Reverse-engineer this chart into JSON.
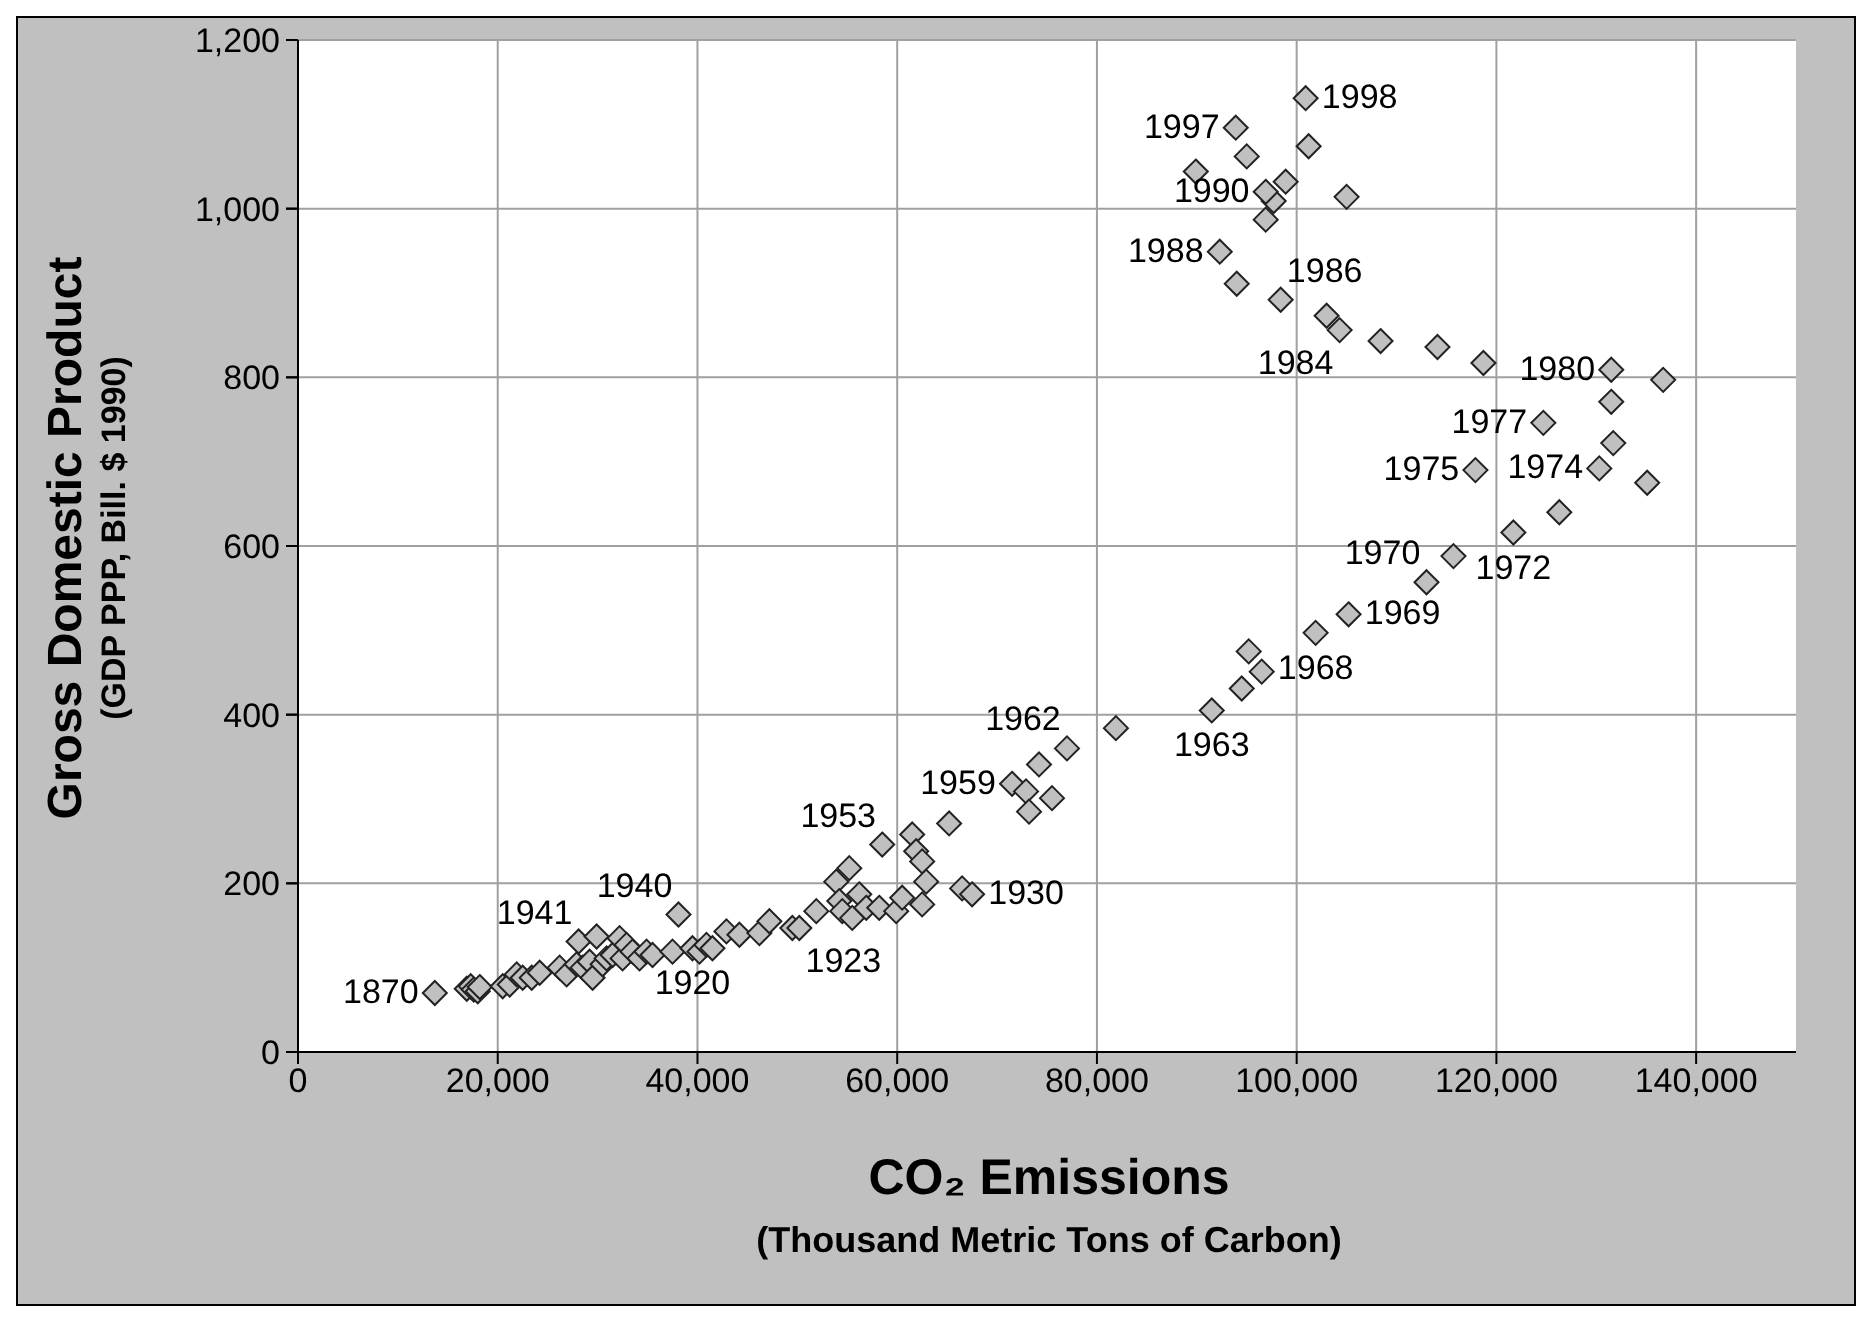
{
  "chart_data": {
    "type": "scatter",
    "xlabel": "CO₂ Emissions\n(Thousand Metric Tons of Carbon)",
    "ylabel": "Gross Domestic Product\n(GDP PPP, Bill. $ 1990)",
    "xlim": [
      0,
      150000
    ],
    "xticks": [
      {
        "value": 0,
        "label": "0"
      },
      {
        "value": 20000,
        "label": "20,000"
      },
      {
        "value": 40000,
        "label": "40,000"
      },
      {
        "value": 60000,
        "label": "60,000"
      },
      {
        "value": 80000,
        "label": "80,000"
      },
      {
        "value": 100000,
        "label": "100,000"
      },
      {
        "value": 120000,
        "label": "120,000"
      },
      {
        "value": 140000,
        "label": "140,000"
      }
    ],
    "ylim": [
      0,
      1200
    ],
    "yticks": [
      0,
      200,
      400,
      600,
      800,
      {
        "value": 1000,
        "label": "1,000"
      },
      {
        "value": 1200,
        "label": "1,200"
      }
    ],
    "grid": true,
    "marker": "diamond",
    "legend": false,
    "series": [
      {
        "color": "#c0c0c0",
        "x": [
          13700,
          16900,
          17300,
          17600,
          18000,
          18200,
          20500,
          21200,
          21900,
          22500,
          23400,
          24200,
          26200,
          26900,
          27900,
          28100,
          28500,
          29200,
          29500,
          29900,
          30500,
          30900,
          31500,
          32200,
          32500,
          32900,
          33500,
          34200,
          34900,
          35500,
          37500,
          38100,
          39500,
          40200,
          40900,
          41500,
          42900,
          44200,
          46200,
          47200,
          49500,
          50200,
          51900,
          53900,
          55200,
          54200,
          54500,
          55500,
          56200,
          56900,
          58200,
          58500,
          59900,
          60500,
          61500,
          61900,
          62500,
          62500,
          62900,
          65200,
          66500,
          67500,
          71500,
          72900,
          73200,
          74200,
          75500,
          77000,
          81900,
          91500,
          94500,
          95200,
          96500,
          101900,
          105200,
          113000,
          115700,
          121700,
          126300,
          130300,
          135100,
          117900,
          131700,
          124700,
          131500,
          136700,
          131500,
          118700,
          114100,
          108400,
          104300,
          103000,
          98400,
          94000,
          92300,
          96900,
          97700,
          96900,
          98900,
          105000,
          89900,
          101200,
          95000,
          93900,
          100900
        ],
        "values": [
          70,
          75,
          78,
          74,
          72,
          77,
          78,
          80,
          92,
          88,
          88,
          94,
          100,
          92,
          104,
          131,
          100,
          107,
          88,
          137,
          104,
          111,
          115,
          135,
          111,
          127,
          119,
          111,
          119,
          115,
          119,
          163,
          123,
          119,
          127,
          123,
          143,
          139,
          141,
          155,
          147,
          147,
          167,
          202,
          218,
          179,
          167,
          159,
          187,
          171,
          171,
          246,
          167,
          183,
          258,
          238,
          226,
          175,
          202,
          271,
          194,
          187,
          318,
          309,
          285,
          341,
          301,
          360,
          384,
          405,
          431,
          475,
          451,
          497,
          519,
          557,
          588,
          616,
          640,
          692,
          675,
          690,
          722,
          746,
          771,
          797,
          809,
          817,
          836,
          843,
          856,
          873,
          892,
          911,
          949,
          987,
          1009,
          1020,
          1032,
          1014,
          1044,
          1074,
          1062,
          1096,
          1131
        ]
      }
    ],
    "annotations": [
      {
        "text": "1870",
        "x": 13700,
        "y": 70
      },
      {
        "text": "1941",
        "x": 28100,
        "y": 131
      },
      {
        "text": "1940",
        "x": 38100,
        "y": 163
      },
      {
        "text": "1920",
        "x": 39500,
        "y": 123
      },
      {
        "text": "1923",
        "x": 50200,
        "y": 147
      },
      {
        "text": "1953",
        "x": 58500,
        "y": 246
      },
      {
        "text": "1959",
        "x": 71500,
        "y": 318
      },
      {
        "text": "1930",
        "x": 67500,
        "y": 187
      },
      {
        "text": "1962",
        "x": 77000,
        "y": 360
      },
      {
        "text": "1963",
        "x": 91500,
        "y": 405
      },
      {
        "text": "1968",
        "x": 101900,
        "y": 497
      },
      {
        "text": "1969",
        "x": 105200,
        "y": 519
      },
      {
        "text": "1970",
        "x": 113000,
        "y": 557
      },
      {
        "text": "1972",
        "x": 121700,
        "y": 616
      },
      {
        "text": "1974",
        "x": 130300,
        "y": 692
      },
      {
        "text": "1975",
        "x": 117900,
        "y": 690
      },
      {
        "text": "1977",
        "x": 124700,
        "y": 746
      },
      {
        "text": "1980",
        "x": 131500,
        "y": 809
      },
      {
        "text": "1984",
        "x": 104300,
        "y": 856
      },
      {
        "text": "1986",
        "x": 98400,
        "y": 892
      },
      {
        "text": "1988",
        "x": 92300,
        "y": 949
      },
      {
        "text": "1990",
        "x": 96900,
        "y": 1020
      },
      {
        "text": "1997",
        "x": 93900,
        "y": 1096
      },
      {
        "text": "1998",
        "x": 100900,
        "y": 1131
      }
    ]
  }
}
